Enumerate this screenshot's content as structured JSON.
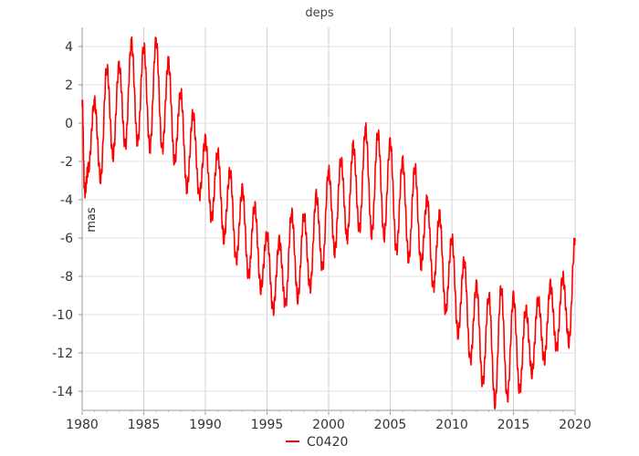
{
  "chart_data": {
    "type": "line",
    "title": "deps",
    "xlabel": "",
    "ylabel": "mas",
    "xlim": [
      1980,
      2020
    ],
    "ylim": [
      -15,
      5
    ],
    "x_ticks": [
      1980,
      1985,
      1990,
      1995,
      2000,
      2005,
      2010,
      2015,
      2020
    ],
    "y_ticks": [
      4,
      2,
      0,
      -2,
      -4,
      -6,
      -8,
      -10,
      -12,
      -14
    ],
    "grid": true,
    "legend_position": "bottom-center",
    "series": [
      {
        "name": "C0420",
        "color": "#ff0000",
        "x": [
          1980.0,
          1980.2,
          1980.5,
          1981.0,
          1981.5,
          1982.0,
          1982.5,
          1983.0,
          1983.5,
          1984.0,
          1984.5,
          1985.0,
          1985.5,
          1986.0,
          1986.5,
          1987.0,
          1987.5,
          1988.0,
          1988.5,
          1989.0,
          1989.5,
          1990.0,
          1990.5,
          1991.0,
          1991.5,
          1992.0,
          1992.5,
          1993.0,
          1993.5,
          1994.0,
          1994.5,
          1995.0,
          1995.5,
          1996.0,
          1996.5,
          1997.0,
          1997.5,
          1998.0,
          1998.5,
          1999.0,
          1999.5,
          2000.0,
          2000.5,
          2001.0,
          2001.5,
          2002.0,
          2002.5,
          2003.0,
          2003.5,
          2004.0,
          2004.5,
          2005.0,
          2005.5,
          2006.0,
          2006.5,
          2007.0,
          2007.5,
          2008.0,
          2008.5,
          2009.0,
          2009.5,
          2010.0,
          2010.5,
          2011.0,
          2011.5,
          2012.0,
          2012.5,
          2013.0,
          2013.5,
          2014.0,
          2014.5,
          2015.0,
          2015.5,
          2016.0,
          2016.5,
          2017.0,
          2017.5,
          2018.0,
          2018.5,
          2019.0,
          2019.5,
          2020.0
        ],
        "values": [
          1.2,
          -3.6,
          -2.4,
          1.1,
          -2.9,
          2.9,
          -1.7,
          3.0,
          -1.2,
          4.2,
          -1.0,
          4.0,
          -1.3,
          4.3,
          -1.4,
          3.2,
          -2.0,
          1.6,
          -3.4,
          0.5,
          -3.8,
          -0.9,
          -5.0,
          -1.5,
          -6.0,
          -2.5,
          -7.2,
          -3.5,
          -8.0,
          -4.3,
          -8.6,
          -5.8,
          -9.8,
          -6.2,
          -9.5,
          -4.7,
          -9.1,
          -4.8,
          -8.6,
          -3.8,
          -7.6,
          -2.5,
          -6.7,
          -1.9,
          -6.0,
          -1.2,
          -5.6,
          -0.3,
          -5.8,
          -0.5,
          -5.9,
          -1.0,
          -6.7,
          -2.0,
          -7.1,
          -2.3,
          -7.4,
          -4.0,
          -8.6,
          -4.8,
          -9.8,
          -6.0,
          -11.0,
          -7.2,
          -12.4,
          -8.5,
          -13.6,
          -9.0,
          -14.6,
          -8.6,
          -14.4,
          -9.1,
          -14.0,
          -9.7,
          -13.0,
          -9.2,
          -12.4,
          -8.5,
          -11.8,
          -8.0,
          -11.4,
          -6.0
        ]
      }
    ]
  }
}
